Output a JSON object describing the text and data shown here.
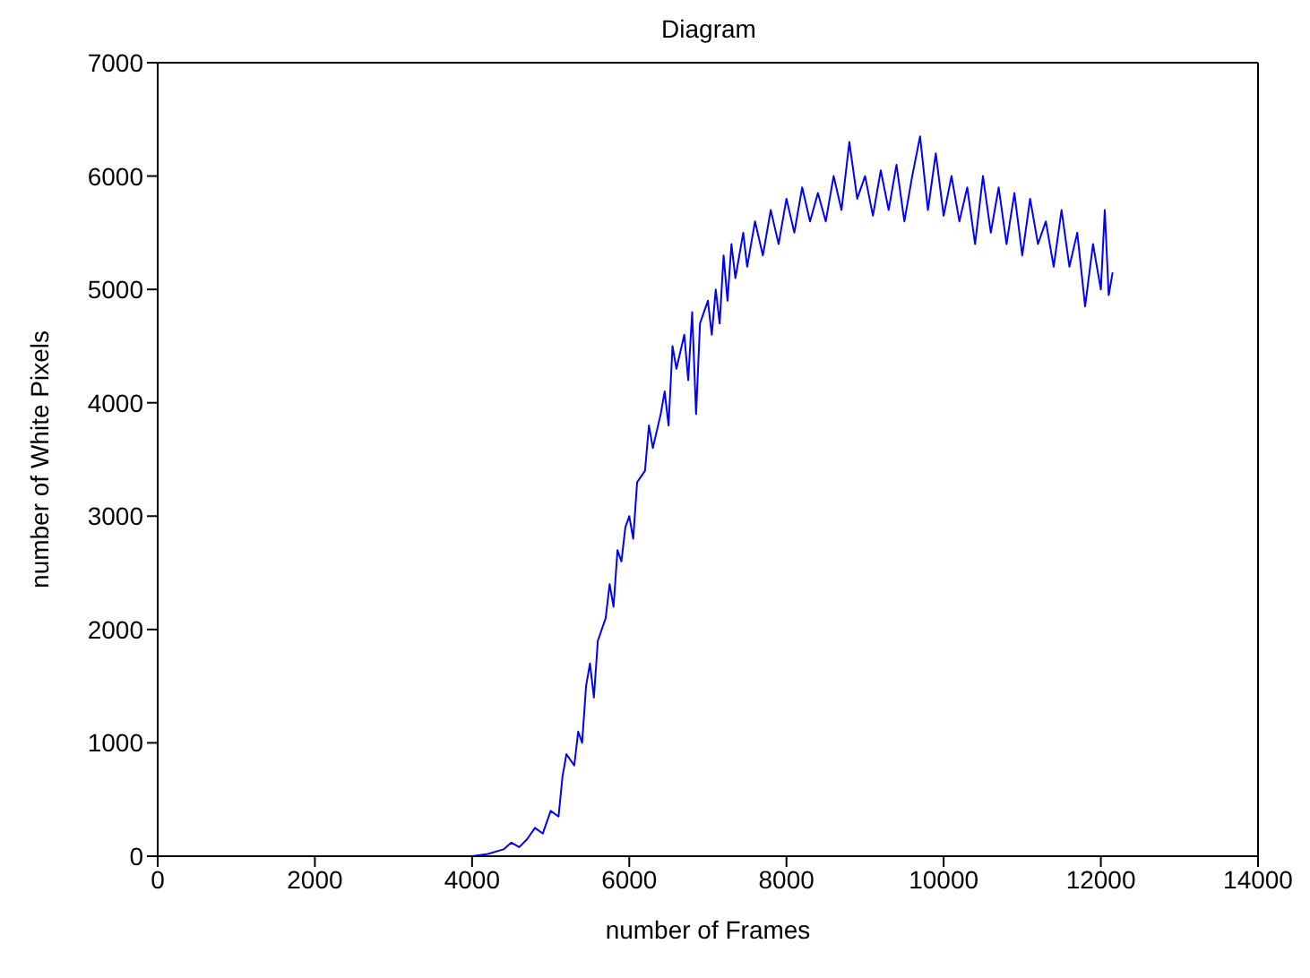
{
  "chart_data": {
    "type": "line",
    "title": "Diagram",
    "xlabel": "number of Frames",
    "ylabel": "number of White Pixels",
    "xlim": [
      0,
      14000
    ],
    "xticks": [
      0,
      2000,
      4000,
      6000,
      8000,
      10000,
      12000,
      14000
    ],
    "ylim": [
      0,
      7000
    ],
    "yticks": [
      0,
      1000,
      2000,
      3000,
      4000,
      5000,
      6000,
      7000
    ],
    "grid": false,
    "legend": false,
    "marker": "none",
    "line_style": "solid",
    "series": [
      {
        "color": "#0000ff",
        "x": [
          0,
          4000,
          4200,
          4400,
          4500,
          4600,
          4700,
          4800,
          4900,
          5000,
          5100,
          5150,
          5200,
          5300,
          5350,
          5400,
          5450,
          5500,
          5550,
          5600,
          5700,
          5750,
          5800,
          5850,
          5900,
          5950,
          6000,
          6050,
          6100,
          6200,
          6250,
          6300,
          6400,
          6450,
          6500,
          6550,
          6600,
          6700,
          6750,
          6800,
          6850,
          6900,
          7000,
          7050,
          7100,
          7150,
          7200,
          7250,
          7300,
          7350,
          7450,
          7500,
          7600,
          7700,
          7800,
          7900,
          8000,
          8100,
          8200,
          8300,
          8400,
          8500,
          8600,
          8700,
          8800,
          8900,
          9000,
          9100,
          9200,
          9300,
          9400,
          9500,
          9600,
          9700,
          9800,
          9900,
          10000,
          10100,
          10200,
          10300,
          10400,
          10500,
          10600,
          10700,
          10800,
          10900,
          11000,
          11100,
          11200,
          11300,
          11400,
          11500,
          11600,
          11700,
          11800,
          11900,
          12000,
          12050,
          12100,
          12150
        ],
        "values": [
          0,
          0,
          20,
          60,
          120,
          80,
          150,
          250,
          200,
          400,
          350,
          700,
          900,
          800,
          1100,
          1000,
          1500,
          1700,
          1400,
          1900,
          2100,
          2400,
          2200,
          2700,
          2600,
          2900,
          3000,
          2800,
          3300,
          3400,
          3800,
          3600,
          3900,
          4100,
          3800,
          4500,
          4300,
          4600,
          4200,
          4800,
          3900,
          4700,
          4900,
          4600,
          5000,
          4700,
          5300,
          4900,
          5400,
          5100,
          5500,
          5200,
          5600,
          5300,
          5700,
          5400,
          5800,
          5500,
          5900,
          5600,
          5850,
          5600,
          6000,
          5700,
          6300,
          5800,
          6000,
          5650,
          6050,
          5700,
          6100,
          5600,
          6000,
          6350,
          5700,
          6200,
          5650,
          6000,
          5600,
          5900,
          5400,
          6000,
          5500,
          5900,
          5400,
          5850,
          5300,
          5800,
          5400,
          5600,
          5200,
          5700,
          5200,
          5500,
          4850,
          5400,
          5000,
          5700,
          4950,
          5150
        ]
      }
    ]
  }
}
